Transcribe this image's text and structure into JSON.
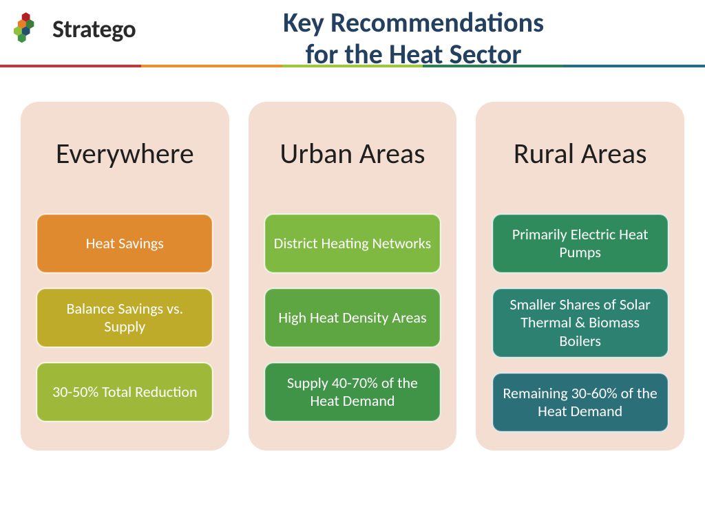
{
  "brand": "Stratego",
  "title_line1": "Key Recommendations",
  "title_line2": "for the Heat Sector",
  "title_color": "#244061",
  "logo_hex_colors": [
    "#b12025",
    "#e57f27",
    "#3a7c3a",
    "#8fc23a",
    "#25506c",
    "#3d9348"
  ],
  "accent_colors": [
    "#b83b3d",
    "#e98f2e",
    "#9ec83a",
    "#2c7f52",
    "#2b6b88"
  ],
  "column_bg": "#f4ded1",
  "columns": [
    {
      "title": "Everywhere",
      "tiles": [
        {
          "label": "Heat Savings",
          "color": "#e08a2f"
        },
        {
          "label": "Balance Savings vs. Supply",
          "color": "#bfab2a"
        },
        {
          "label": "30-50% Total Reduction",
          "color": "#9eb93a"
        }
      ]
    },
    {
      "title": "Urban Areas",
      "tiles": [
        {
          "label": "District Heating Networks",
          "color": "#7fb941"
        },
        {
          "label": "High Heat Density Areas",
          "color": "#5ea642"
        },
        {
          "label": "Supply 40-70% of the Heat Demand",
          "color": "#3f9448"
        }
      ]
    },
    {
      "title": "Rural Areas",
      "tiles": [
        {
          "label": "Primarily Electric Heat Pumps",
          "color": "#2f8b5c"
        },
        {
          "label": "Smaller Shares of Solar Thermal & Biomass Boilers",
          "color": "#2c8170"
        },
        {
          "label": "Remaining 30-60% of the Heat Demand",
          "color": "#2b6f79"
        }
      ]
    }
  ]
}
